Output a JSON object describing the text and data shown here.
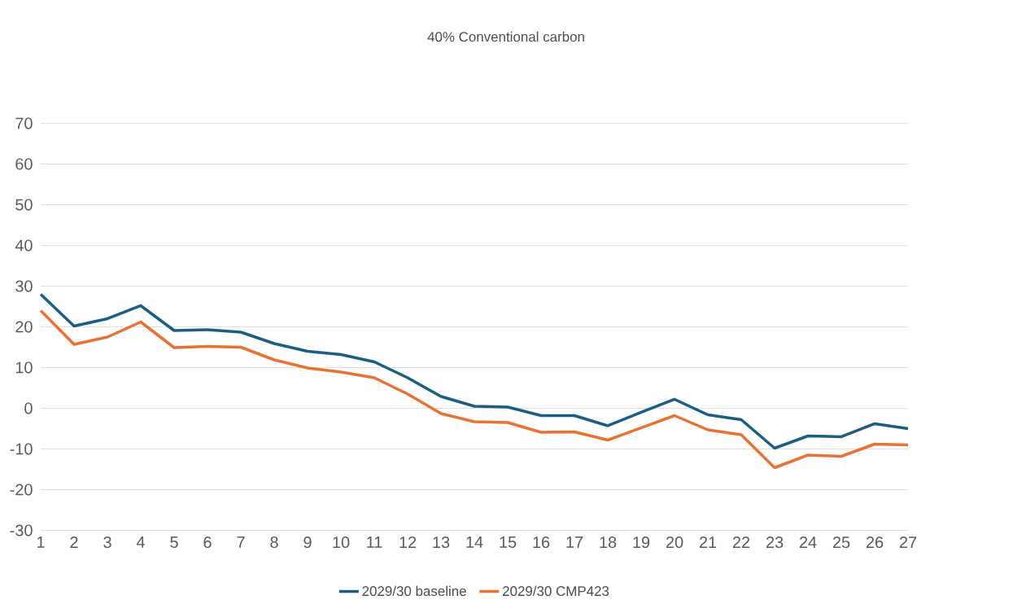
{
  "chart_data": {
    "type": "line",
    "title": "40% Conventional carbon",
    "categories": [
      "1",
      "2",
      "3",
      "4",
      "5",
      "6",
      "7",
      "8",
      "9",
      "10",
      "11",
      "12",
      "13",
      "14",
      "15",
      "16",
      "17",
      "18",
      "19",
      "20",
      "21",
      "22",
      "23",
      "24",
      "25",
      "26",
      "27"
    ],
    "series": [
      {
        "name": "2029/30 baseline",
        "color": "#1b5e82",
        "values": [
          28,
          20.2,
          22,
          25.2,
          19.1,
          19.3,
          18.7,
          15.9,
          14,
          13.2,
          11.4,
          7.5,
          2.9,
          0.5,
          0.3,
          -1.8,
          -1.8,
          -4.3,
          -1,
          2.2,
          -1.6,
          -2.8,
          -9.8,
          -6.8,
          -7,
          -3.8,
          -5
        ]
      },
      {
        "name": "2029/30 CMP423",
        "color": "#e97132",
        "values": [
          24,
          15.7,
          17.5,
          21.2,
          14.9,
          15.2,
          15,
          11.9,
          9.9,
          8.9,
          7.5,
          3.5,
          -1.3,
          -3.3,
          -3.5,
          -5.9,
          -5.8,
          -7.8,
          -4.8,
          -1.8,
          -5.3,
          -6.5,
          -14.6,
          -11.5,
          -11.8,
          -8.8,
          -9
        ]
      }
    ],
    "ylim": [
      -30,
      70
    ],
    "yticks": [
      -30,
      -20,
      -10,
      0,
      10,
      20,
      30,
      40,
      50,
      60,
      70
    ],
    "grid": "y",
    "legend": "bottom",
    "marker": "none",
    "line_style": "solid"
  }
}
